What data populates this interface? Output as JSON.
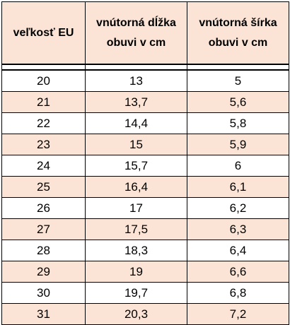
{
  "table": {
    "headers": [
      "veľkosť EU",
      "vnútorná dĺžka obuvi v cm",
      "vnútorná šírka obuvi v cm"
    ],
    "rows": [
      [
        "20",
        "13",
        "5"
      ],
      [
        "21",
        "13,7",
        "5,6"
      ],
      [
        "22",
        "14,4",
        "5,8"
      ],
      [
        "23",
        "15",
        "5,9"
      ],
      [
        "24",
        "15,7",
        "6"
      ],
      [
        "25",
        "16,4",
        "6,1"
      ],
      [
        "26",
        "17",
        "6,2"
      ],
      [
        "27",
        "17,5",
        "6,3"
      ],
      [
        "28",
        "18,3",
        "6,4"
      ],
      [
        "29",
        "19",
        "6,6"
      ],
      [
        "30",
        "19,7",
        "6,8"
      ],
      [
        "31",
        "20,3",
        "7,2"
      ]
    ],
    "colors": {
      "header_bg": "#fbe4d5",
      "odd_row_bg": "#fbe4d5",
      "even_row_bg": "#ffffff",
      "border": "#000000"
    }
  }
}
